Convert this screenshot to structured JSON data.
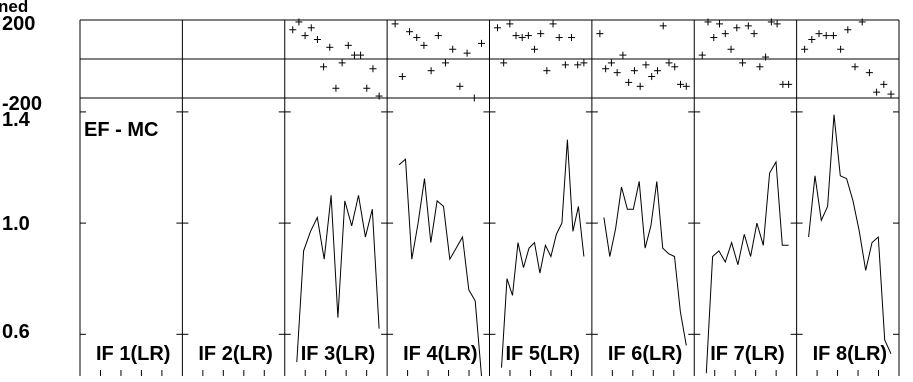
{
  "chart_data": {
    "type": "line",
    "title": "",
    "top_partial_label": "ned",
    "top_panel": {
      "type": "scatter",
      "marker": "+",
      "ylim": [
        -200,
        200
      ],
      "y_tick_labels": [
        "200",
        "-200"
      ],
      "hlines": [
        0,
        -200
      ]
    },
    "bottom_panel": {
      "type": "line",
      "label": "EF - MC",
      "ylim": [
        0.45,
        1.45
      ],
      "y_tick_labels": [
        "1.4",
        "1.0",
        "0.6"
      ],
      "y_ticks": [
        1.4,
        1.0,
        0.6
      ]
    },
    "panels": [
      {
        "name": "IF 1(LR)",
        "scatter_y": [],
        "line_y": []
      },
      {
        "name": "IF 2(LR)",
        "scatter_y": [],
        "line_y": []
      },
      {
        "name": "IF 3(LR)",
        "scatter_y": [
          150,
          190,
          120,
          160,
          100,
          -40,
          60,
          -150,
          -20,
          70,
          20,
          20,
          -150,
          -50,
          -190
        ],
        "line_y": [
          0.5,
          0.9,
          0.97,
          1.02,
          0.87,
          1.1,
          0.66,
          1.08,
          0.99,
          1.1,
          0.95,
          1.05,
          0.62
        ]
      },
      {
        "name": "IF 4(LR)",
        "scatter_y": [
          180,
          -90,
          140,
          110,
          70,
          -60,
          120,
          -20,
          50,
          -140,
          30,
          -200,
          80
        ],
        "line_y": [
          1.21,
          1.23,
          0.87,
          1.0,
          1.16,
          0.93,
          1.08,
          1.06,
          0.87,
          0.91,
          0.95,
          0.76,
          0.72,
          0.45
        ]
      },
      {
        "name": "IF 5(LR)",
        "scatter_y": [
          160,
          -20,
          180,
          120,
          110,
          120,
          50,
          130,
          -60,
          180,
          110,
          -30,
          110,
          -30,
          -20
        ],
        "line_y": [
          0.48,
          0.8,
          0.74,
          0.93,
          0.84,
          0.91,
          0.93,
          0.82,
          0.92,
          0.88,
          0.96,
          1.0,
          1.3,
          0.97,
          1.06,
          0.88
        ]
      },
      {
        "name": "IF 6(LR)",
        "scatter_y": [
          130,
          -50,
          -20,
          -70,
          20,
          -120,
          -60,
          -140,
          -30,
          -90,
          -60,
          170,
          -20,
          -40,
          -130,
          -140
        ],
        "line_y": [
          1.02,
          0.88,
          0.98,
          1.13,
          1.05,
          1.05,
          1.15,
          0.91,
          0.99,
          1.15,
          0.91,
          0.89,
          0.88,
          0.68,
          0.56
        ]
      },
      {
        "name": "IF 7(LR)",
        "scatter_y": [
          20,
          190,
          110,
          180,
          130,
          50,
          160,
          -20,
          170,
          130,
          -40,
          10,
          190,
          180,
          -130,
          -130
        ],
        "line_y": [
          0.46,
          0.88,
          0.9,
          0.86,
          0.93,
          0.85,
          0.96,
          0.88,
          1.0,
          0.92,
          1.18,
          1.22,
          0.92,
          0.92
        ]
      },
      {
        "name": "IF 8(LR)",
        "scatter_y": [
          50,
          100,
          130,
          120,
          120,
          50,
          150,
          -40,
          190,
          -70,
          -170,
          -130,
          -180
        ],
        "line_y": [
          0.95,
          1.17,
          1.01,
          1.06,
          1.39,
          1.17,
          1.16,
          1.08,
          0.97,
          0.83,
          0.93,
          0.95,
          0.58,
          0.53
        ]
      }
    ]
  }
}
